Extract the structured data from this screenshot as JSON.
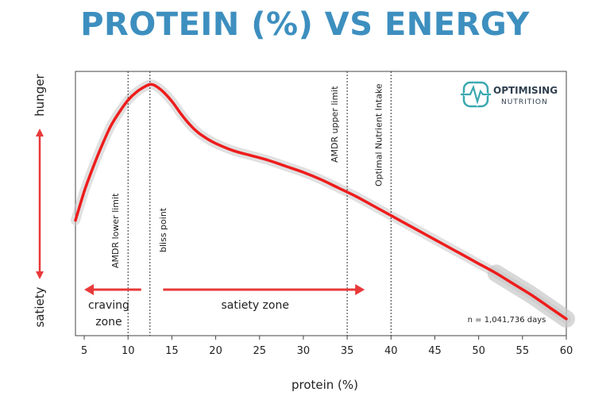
{
  "title": "PROTEIN (%) VS ENERGY",
  "logo": {
    "line1": "OPTIMISING",
    "line2": "NUTRITION"
  },
  "colors": {
    "title": "#3d8fbf",
    "curve": "#ee1c1c",
    "band": "#c8c8c8",
    "arrow": "#e8393a",
    "logo": "#3aa8b0"
  },
  "chart_data": {
    "type": "line",
    "xlabel": "protein (%)",
    "y_top_label": "hunger",
    "y_bottom_label": "satiety",
    "xlim": [
      4,
      60
    ],
    "x_ticks": [
      5,
      10,
      15,
      20,
      25,
      30,
      35,
      40,
      45,
      50,
      55,
      60
    ],
    "y_scale": "unlabelled relative energy intake (0 = bottom/satiety, 1 = top/hunger)",
    "series": [
      {
        "x": [
          4,
          5,
          6,
          7,
          8,
          9,
          10,
          11,
          12,
          12.5,
          13,
          14,
          15,
          16,
          17,
          18,
          19,
          20,
          22,
          24,
          26,
          28,
          30,
          32,
          34,
          36,
          38,
          40,
          42,
          44,
          46,
          48,
          50,
          52,
          54,
          56,
          58,
          60
        ],
        "y": [
          0.43,
          0.55,
          0.65,
          0.74,
          0.82,
          0.88,
          0.93,
          0.965,
          0.988,
          0.995,
          0.992,
          0.965,
          0.925,
          0.875,
          0.83,
          0.795,
          0.77,
          0.75,
          0.72,
          0.7,
          0.68,
          0.655,
          0.63,
          0.6,
          0.565,
          0.53,
          0.49,
          0.45,
          0.41,
          0.37,
          0.33,
          0.29,
          0.25,
          0.21,
          0.165,
          0.12,
          0.07,
          0.02
        ]
      }
    ],
    "vertical_lines": [
      {
        "x": 10,
        "label": "AMDR lower limit"
      },
      {
        "x": 12.5,
        "label": "bliss point"
      },
      {
        "x": 35,
        "label": "AMDR upper limit"
      },
      {
        "x": 40,
        "label": "Optimal Nutrient Intake"
      }
    ],
    "zones": [
      {
        "label_lines": [
          "craving",
          "zone"
        ],
        "arrow_from": 11.5,
        "arrow_to": 5
      },
      {
        "label_lines": [
          "satiety zone"
        ],
        "arrow_from": 14,
        "arrow_to": 37
      }
    ],
    "annotation": "n = 1,041,736 days"
  }
}
